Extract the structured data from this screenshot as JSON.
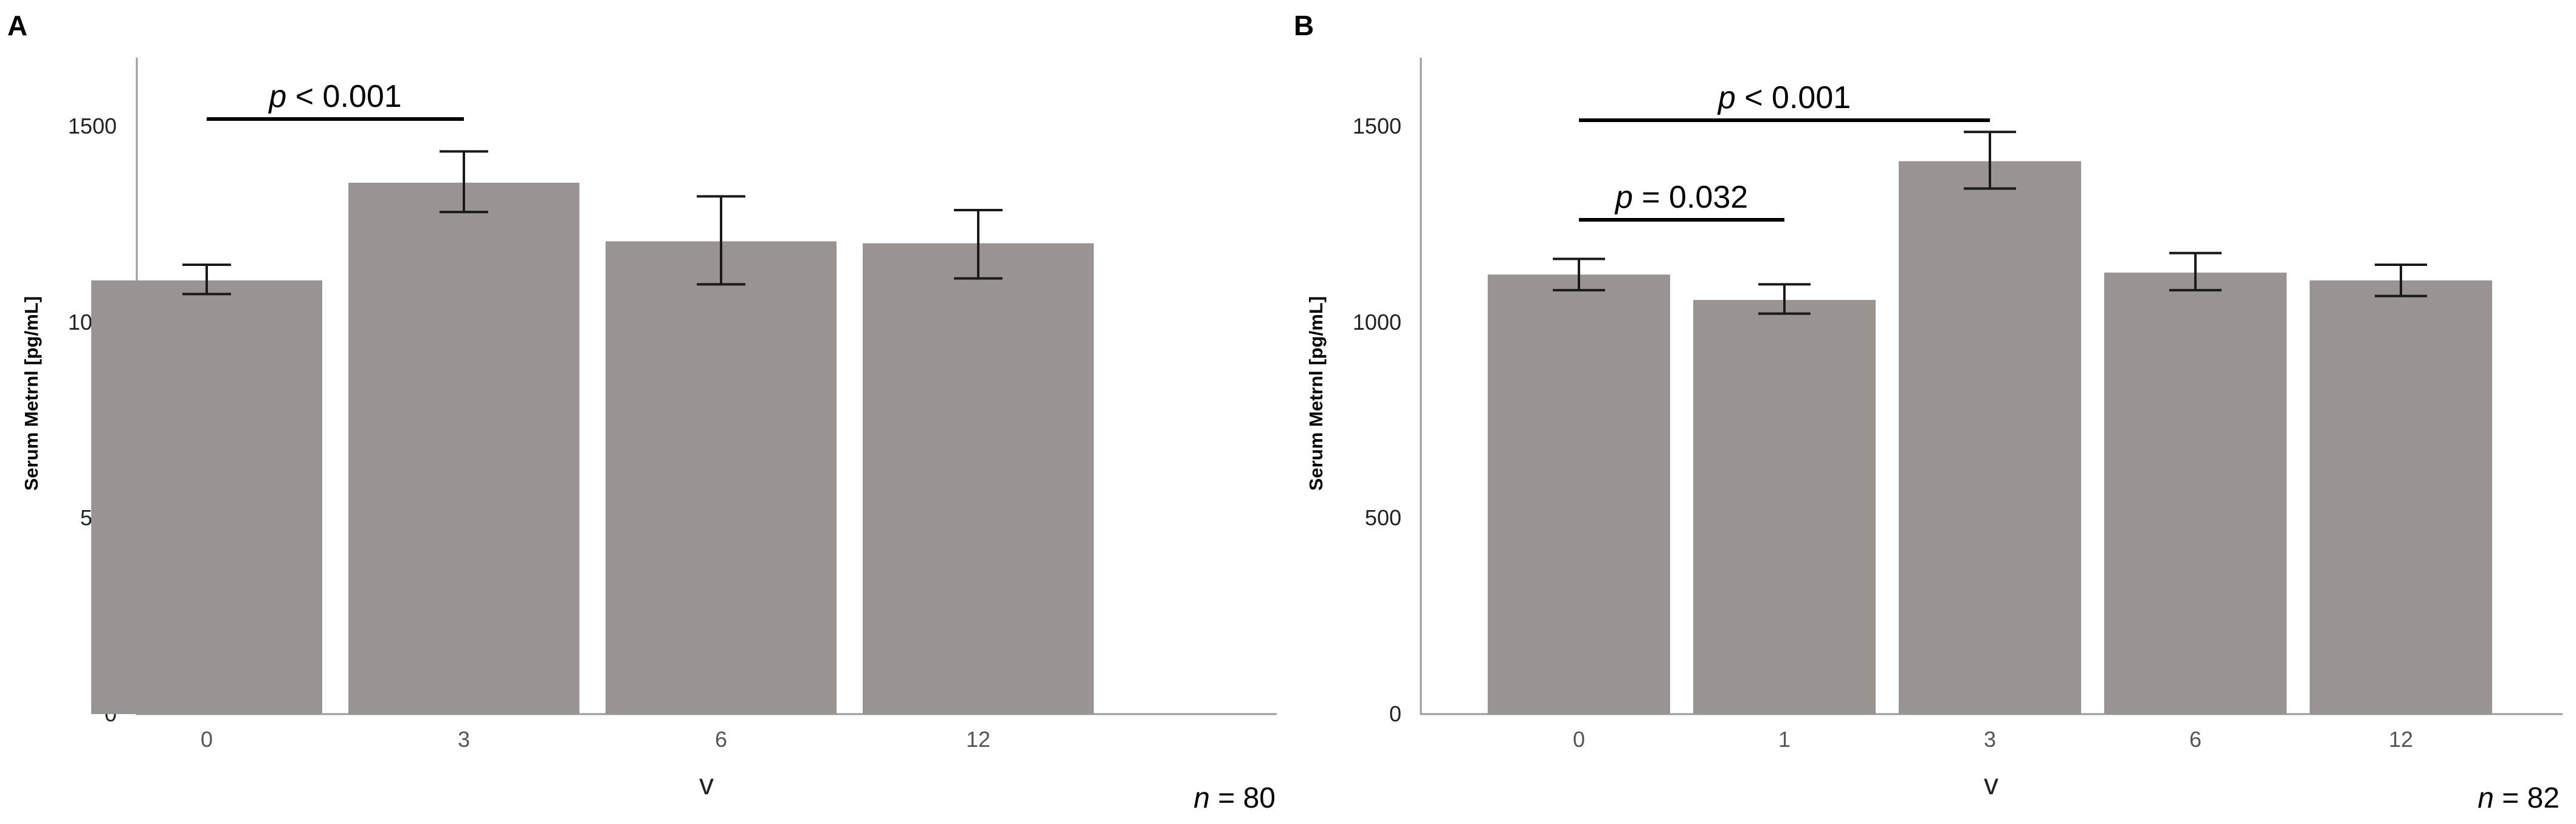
{
  "chart_data": [
    {
      "type": "bar",
      "panel": "A",
      "categories": [
        "0",
        "3",
        "6",
        "12"
      ],
      "values": [
        1110,
        1360,
        1210,
        1205
      ],
      "error_low": [
        1075,
        1285,
        1100,
        1115
      ],
      "error_high": [
        1150,
        1440,
        1325,
        1290
      ],
      "xlabel": "v",
      "ylabel": "Serum Metrnl [pg/mL]",
      "ylim": [
        0,
        1680
      ],
      "yticks": [
        "0",
        "500",
        "1000",
        "1500"
      ],
      "annotations": [
        {
          "p_symbol": "p",
          "text": " < 0.001",
          "from": "0",
          "to": "3"
        }
      ],
      "n_symbol": "n",
      "n_text": " = 80",
      "bar_color": "#999491",
      "grid": false
    },
    {
      "type": "bar",
      "panel": "B",
      "categories": [
        "0",
        "1",
        "3",
        "6",
        "12"
      ],
      "values": [
        1125,
        1060,
        1415,
        1130,
        1110
      ],
      "error_low": [
        1085,
        1025,
        1345,
        1085,
        1070
      ],
      "error_high": [
        1165,
        1100,
        1490,
        1180,
        1150
      ],
      "xlabel": "v",
      "ylabel": "Serum Metrnl [pg/mL]",
      "ylim": [
        0,
        1680
      ],
      "yticks": [
        "0",
        "500",
        "1000",
        "1500"
      ],
      "annotations": [
        {
          "p_symbol": "p",
          "text": " < 0.001",
          "from": "0",
          "to": "3"
        },
        {
          "p_symbol": "p",
          "text": " = 0.032",
          "from": "0",
          "to": "1"
        }
      ],
      "n_symbol": "n",
      "n_text": " = 82",
      "bar_color": "#999491",
      "grid": false
    }
  ]
}
